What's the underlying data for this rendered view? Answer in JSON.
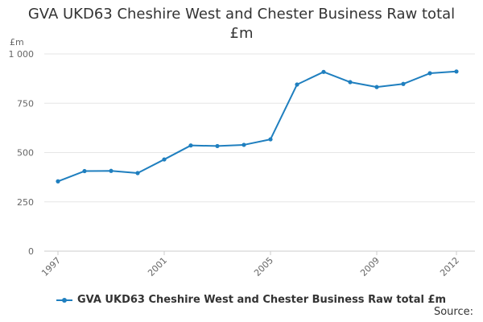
{
  "chart_data": {
    "type": "line",
    "title_line1": "GVA UKD63 Cheshire West and Chester Business Raw total",
    "title_line2": "£m",
    "ylabel": "£m",
    "xlabel": "",
    "x": [
      1997,
      1998,
      1999,
      2000,
      2001,
      2002,
      2003,
      2004,
      2005,
      2006,
      2007,
      2008,
      2009,
      2010,
      2011,
      2012
    ],
    "x_tick_labels": [
      "1997",
      "2001",
      "2005",
      "2009",
      "2012"
    ],
    "y_tick_labels": [
      "0",
      "250",
      "500",
      "750",
      "1 000"
    ],
    "ylim": [
      0,
      1000
    ],
    "grid": true,
    "series": [
      {
        "name": "GVA UKD63 Cheshire West and Chester Business Raw total £m",
        "color": "#1f7fbf",
        "values": [
          354,
          406,
          407,
          396,
          465,
          536,
          533,
          539,
          567,
          845,
          909,
          857,
          832,
          848,
          902,
          911
        ]
      }
    ],
    "legend_position": "bottom-left"
  },
  "source_label": "Source:"
}
